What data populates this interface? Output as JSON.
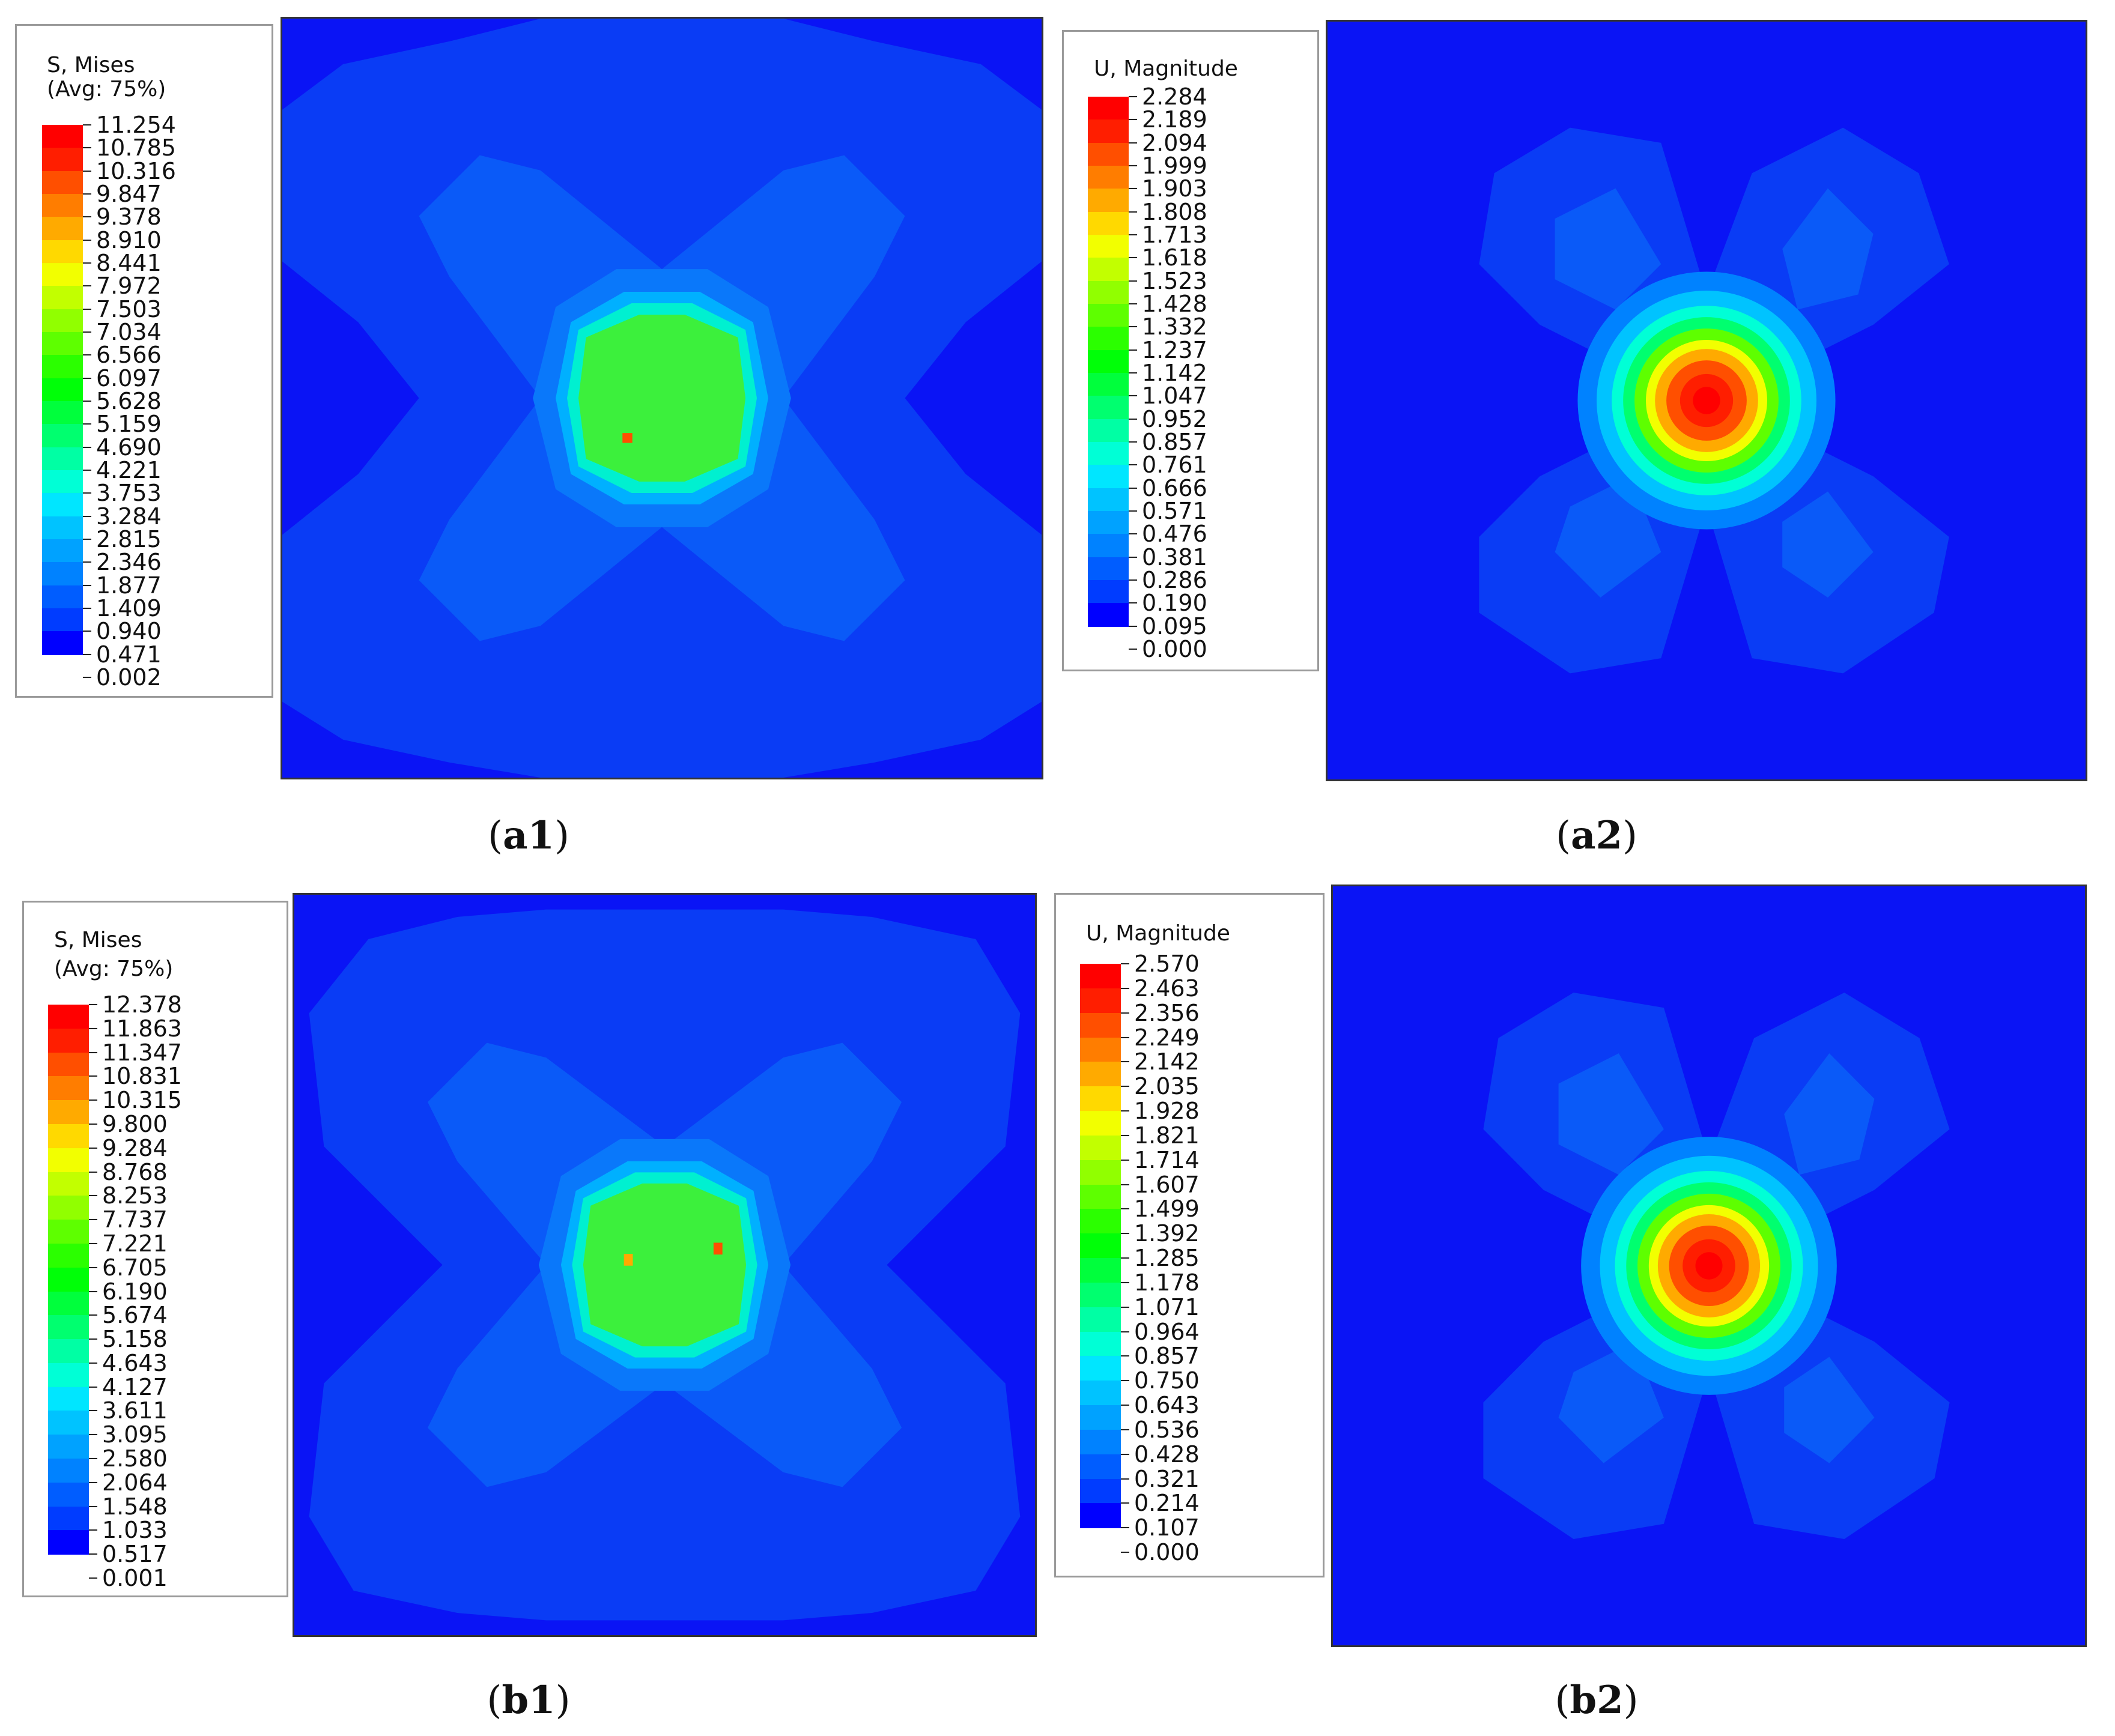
{
  "colors": [
    "#0000ff",
    "#003cff",
    "#005dff",
    "#0082ff",
    "#00a2ff",
    "#00c3ff",
    "#00e6ff",
    "#00ffd6",
    "#00ffa4",
    "#00ff6f",
    "#00ff3c",
    "#00ff08",
    "#2bff00",
    "#5eff00",
    "#91ff00",
    "#c2ff00",
    "#f2ff00",
    "#ffd900",
    "#ffaa00",
    "#ff7d00",
    "#ff4f00",
    "#ff1e00",
    "#ff0000"
  ],
  "panels": {
    "a1": {
      "legend_title_1": "S, Mises",
      "legend_title_2": "(Avg: 75%)",
      "values": [
        "11.254",
        "10.785",
        "10.316",
        "9.847",
        "9.378",
        "8.910",
        "8.441",
        "7.972",
        "7.503",
        "7.034",
        "6.566",
        "6.097",
        "5.628",
        "5.159",
        "4.690",
        "4.221",
        "3.753",
        "3.284",
        "2.815",
        "2.346",
        "1.877",
        "1.409",
        "0.940",
        "0.471",
        "0.002"
      ],
      "caption_letter": "a1"
    },
    "a2": {
      "legend_title_1": "U, Magnitude",
      "values": [
        "2.284",
        "2.189",
        "2.094",
        "1.999",
        "1.903",
        "1.808",
        "1.713",
        "1.618",
        "1.523",
        "1.428",
        "1.332",
        "1.237",
        "1.142",
        "1.047",
        "0.952",
        "0.857",
        "0.761",
        "0.666",
        "0.571",
        "0.476",
        "0.381",
        "0.286",
        "0.190",
        "0.095",
        "0.000"
      ],
      "caption_letter": "a2"
    },
    "b1": {
      "legend_title_1": "S, Mises",
      "legend_title_2": "(Avg: 75%)",
      "values": [
        "12.378",
        "11.863",
        "11.347",
        "10.831",
        "10.315",
        "9.800",
        "9.284",
        "8.768",
        "8.253",
        "7.737",
        "7.221",
        "6.705",
        "6.190",
        "5.674",
        "5.158",
        "4.643",
        "4.127",
        "3.611",
        "3.095",
        "2.580",
        "2.064",
        "1.548",
        "1.033",
        "0.517",
        "0.001"
      ],
      "caption_letter": "b1"
    },
    "b2": {
      "legend_title_1": "U, Magnitude",
      "values": [
        "2.570",
        "2.463",
        "2.356",
        "2.249",
        "2.142",
        "2.035",
        "1.928",
        "1.821",
        "1.714",
        "1.607",
        "1.499",
        "1.392",
        "1.285",
        "1.178",
        "1.071",
        "0.964",
        "0.857",
        "0.750",
        "0.643",
        "0.536",
        "0.428",
        "0.321",
        "0.214",
        "0.107",
        "0.000"
      ],
      "caption_letter": "b2"
    }
  }
}
